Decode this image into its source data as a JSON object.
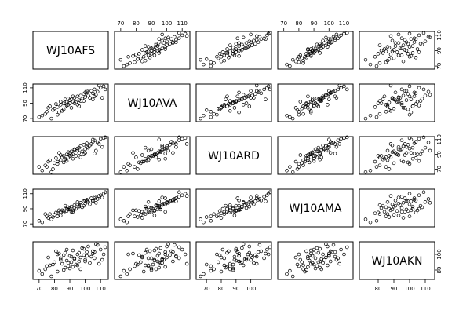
{
  "chart_data": {
    "type": "scatter",
    "title": "",
    "variables": [
      "WJ10AFS",
      "WJ10AVA",
      "WJ10ARD",
      "WJ10AMA",
      "WJ10AKN"
    ],
    "ranges": [
      [
        66,
        115
      ],
      [
        66,
        115
      ],
      [
        63,
        114
      ],
      [
        66,
        116
      ],
      [
        68,
        116
      ]
    ],
    "ticks": [
      [
        70,
        80,
        90,
        100,
        110
      ],
      [
        70,
        90,
        110
      ],
      [
        70,
        90,
        110
      ],
      [
        70,
        90,
        110
      ],
      [
        80,
        100
      ]
    ],
    "top_axis_ticks": {
      "col1": [
        "70",
        "80",
        "90",
        "100",
        "110"
      ],
      "col3": [
        "70",
        "80",
        "90",
        "100",
        "110"
      ]
    },
    "bottom_axis_ticks": {
      "col0": [
        "70",
        "80",
        "90",
        "100",
        "110"
      ],
      "col2": [
        "70",
        "80",
        "90",
        "100"
      ],
      "col4": [
        "80",
        "90",
        "100",
        "110"
      ]
    },
    "left_axis_ticks": {
      "row1": [
        "70",
        "90",
        "110"
      ],
      "row3": [
        "70",
        "90",
        "110"
      ]
    },
    "right_axis_ticks": {
      "row0": [
        "70",
        "90",
        "110"
      ],
      "row2": [
        "70",
        "90",
        "110"
      ],
      "row4": [
        "80",
        "100"
      ]
    },
    "observations": [
      [
        72,
        74,
        68,
        72,
        75
      ],
      [
        75,
        79,
        73,
        80,
        85
      ],
      [
        78,
        70,
        66,
        76,
        72
      ],
      [
        80,
        83,
        78,
        82,
        90
      ],
      [
        82,
        85,
        80,
        84,
        78
      ],
      [
        84,
        88,
        82,
        86,
        95
      ],
      [
        85,
        80,
        86,
        88,
        88
      ],
      [
        86,
        90,
        88,
        85,
        80
      ],
      [
        87,
        86,
        84,
        90,
        102
      ],
      [
        88,
        92,
        90,
        87,
        92
      ],
      [
        89,
        88,
        86,
        92,
        85
      ],
      [
        90,
        94,
        92,
        89,
        98
      ],
      [
        90,
        90,
        88,
        91,
        82
      ],
      [
        91,
        95,
        94,
        93,
        90
      ],
      [
        92,
        92,
        90,
        88,
        105
      ],
      [
        93,
        97,
        96,
        95,
        94
      ],
      [
        94,
        91,
        88,
        90,
        87
      ],
      [
        95,
        99,
        98,
        96,
        100
      ],
      [
        96,
        94,
        92,
        94,
        91
      ],
      [
        97,
        100,
        101,
        98,
        96
      ],
      [
        98,
        96,
        94,
        92,
        108
      ],
      [
        99,
        102,
        103,
        100,
        99
      ],
      [
        100,
        98,
        97,
        97,
        93
      ],
      [
        101,
        104,
        105,
        102,
        103
      ],
      [
        102,
        100,
        99,
        99,
        110
      ],
      [
        104,
        106,
        104,
        104,
        97
      ],
      [
        105,
        103,
        107,
        101,
        104
      ],
      [
        106,
        108,
        109,
        106,
        95
      ],
      [
        108,
        105,
        106,
        103,
        112
      ],
      [
        110,
        110,
        111,
        108,
        106
      ],
      [
        112,
        112,
        112,
        110,
        100
      ],
      [
        113,
        108,
        113,
        112,
        109
      ],
      [
        83,
        78,
        92,
        88,
        101
      ],
      [
        87,
        95,
        83,
        94,
        83
      ],
      [
        91,
        84,
        89,
        86,
        97
      ],
      [
        95,
        88,
        95,
        99,
        86
      ],
      [
        99,
        93,
        90,
        94,
        107
      ],
      [
        103,
        97,
        102,
        96,
        89
      ],
      [
        107,
        101,
        95,
        98,
        113
      ],
      [
        111,
        97,
        100,
        105,
        93
      ],
      [
        76,
        84,
        80,
        78,
        96
      ],
      [
        81,
        89,
        85,
        85,
        104
      ],
      [
        86,
        82,
        79,
        87,
        99
      ],
      [
        92,
        99,
        84,
        86,
        84
      ],
      [
        96,
        86,
        99,
        93,
        102
      ],
      [
        100,
        104,
        92,
        101,
        91
      ],
      [
        105,
        95,
        110,
        100,
        101
      ],
      [
        109,
        113,
        104,
        107,
        88
      ],
      [
        74,
        76,
        75,
        83,
        81
      ],
      [
        79,
        81,
        70,
        79,
        87
      ],
      [
        84,
        92,
        89,
        81,
        93
      ],
      [
        88,
        87,
        81,
        90,
        106
      ],
      [
        93,
        90,
        97,
        91,
        95
      ],
      [
        97,
        93,
        86,
        95,
        81
      ],
      [
        101,
        106,
        100,
        100,
        98
      ],
      [
        106,
        99,
        91,
        104,
        103
      ],
      [
        70,
        72,
        73,
        74,
        79
      ],
      [
        77,
        86,
        82,
        83,
        86
      ],
      [
        82,
        75,
        77,
        80,
        100
      ],
      [
        89,
        96,
        93,
        89,
        89
      ]
    ]
  }
}
